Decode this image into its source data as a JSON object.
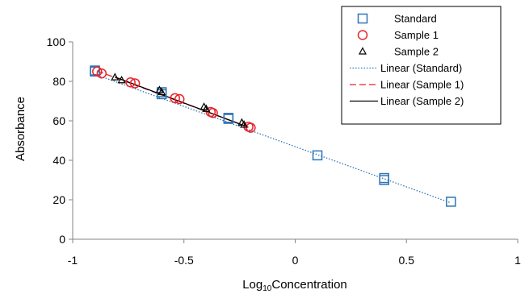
{
  "chart_data": {
    "type": "scatter",
    "title": "",
    "xlabel": "Log",
    "xlabel_sub": "10",
    "xlabel_rest": "Concentration",
    "ylabel": "Absorbance",
    "xlim": [
      -1,
      1
    ],
    "ylim": [
      0,
      100
    ],
    "xticks": [
      -1,
      -0.5,
      0,
      0.5,
      1
    ],
    "xtick_labels": [
      "-1",
      "-0.5",
      "0",
      "0.5",
      "1"
    ],
    "yticks": [
      0,
      20,
      40,
      60,
      80,
      100
    ],
    "ytick_labels": [
      "0",
      "20",
      "40",
      "60",
      "80",
      "100"
    ],
    "grid": false,
    "legend_position": "top-right",
    "series": [
      {
        "name": "Standard",
        "marker": "square",
        "color": "#2E75B6",
        "x": [
          -0.9,
          -0.9,
          -0.6,
          -0.6,
          -0.3,
          -0.3,
          0.1,
          0.4,
          0.4,
          0.7
        ],
        "y": [
          85.5,
          85,
          74.5,
          73.5,
          61.5,
          61,
          42.5,
          31,
          30,
          19
        ]
      },
      {
        "name": "Sample 1",
        "marker": "circle",
        "color": "#E8242A",
        "x": [
          -0.89,
          -0.87,
          -0.74,
          -0.72,
          -0.54,
          -0.52,
          -0.38,
          -0.37,
          -0.21,
          -0.2
        ],
        "y": [
          85,
          84,
          79.5,
          79,
          71.5,
          71,
          64.5,
          64,
          57,
          56.5
        ]
      },
      {
        "name": "Sample 2",
        "marker": "triangle",
        "color": "#000000",
        "x": [
          -0.81,
          -0.78,
          -0.61,
          -0.6,
          -0.41,
          -0.4,
          -0.24,
          -0.23
        ],
        "y": [
          82,
          80.5,
          75.5,
          74.5,
          67,
          66,
          59,
          58
        ]
      }
    ],
    "trendlines": [
      {
        "name": "Linear (Standard)",
        "color": "#2E75B6",
        "style": "dotted",
        "x": [
          -0.9,
          0.7
        ],
        "y": [
          83.6,
          18.4
        ]
      },
      {
        "name": "Linear (Sample 1)",
        "color": "#E8242A",
        "style": "dashed",
        "x": [
          -0.89,
          -0.2
        ],
        "y": [
          85.3,
          56.3
        ]
      },
      {
        "name": "Linear (Sample 2)",
        "color": "#000000",
        "style": "solid",
        "x": [
          -0.81,
          -0.23
        ],
        "y": [
          82.2,
          57.6
        ]
      }
    ]
  }
}
